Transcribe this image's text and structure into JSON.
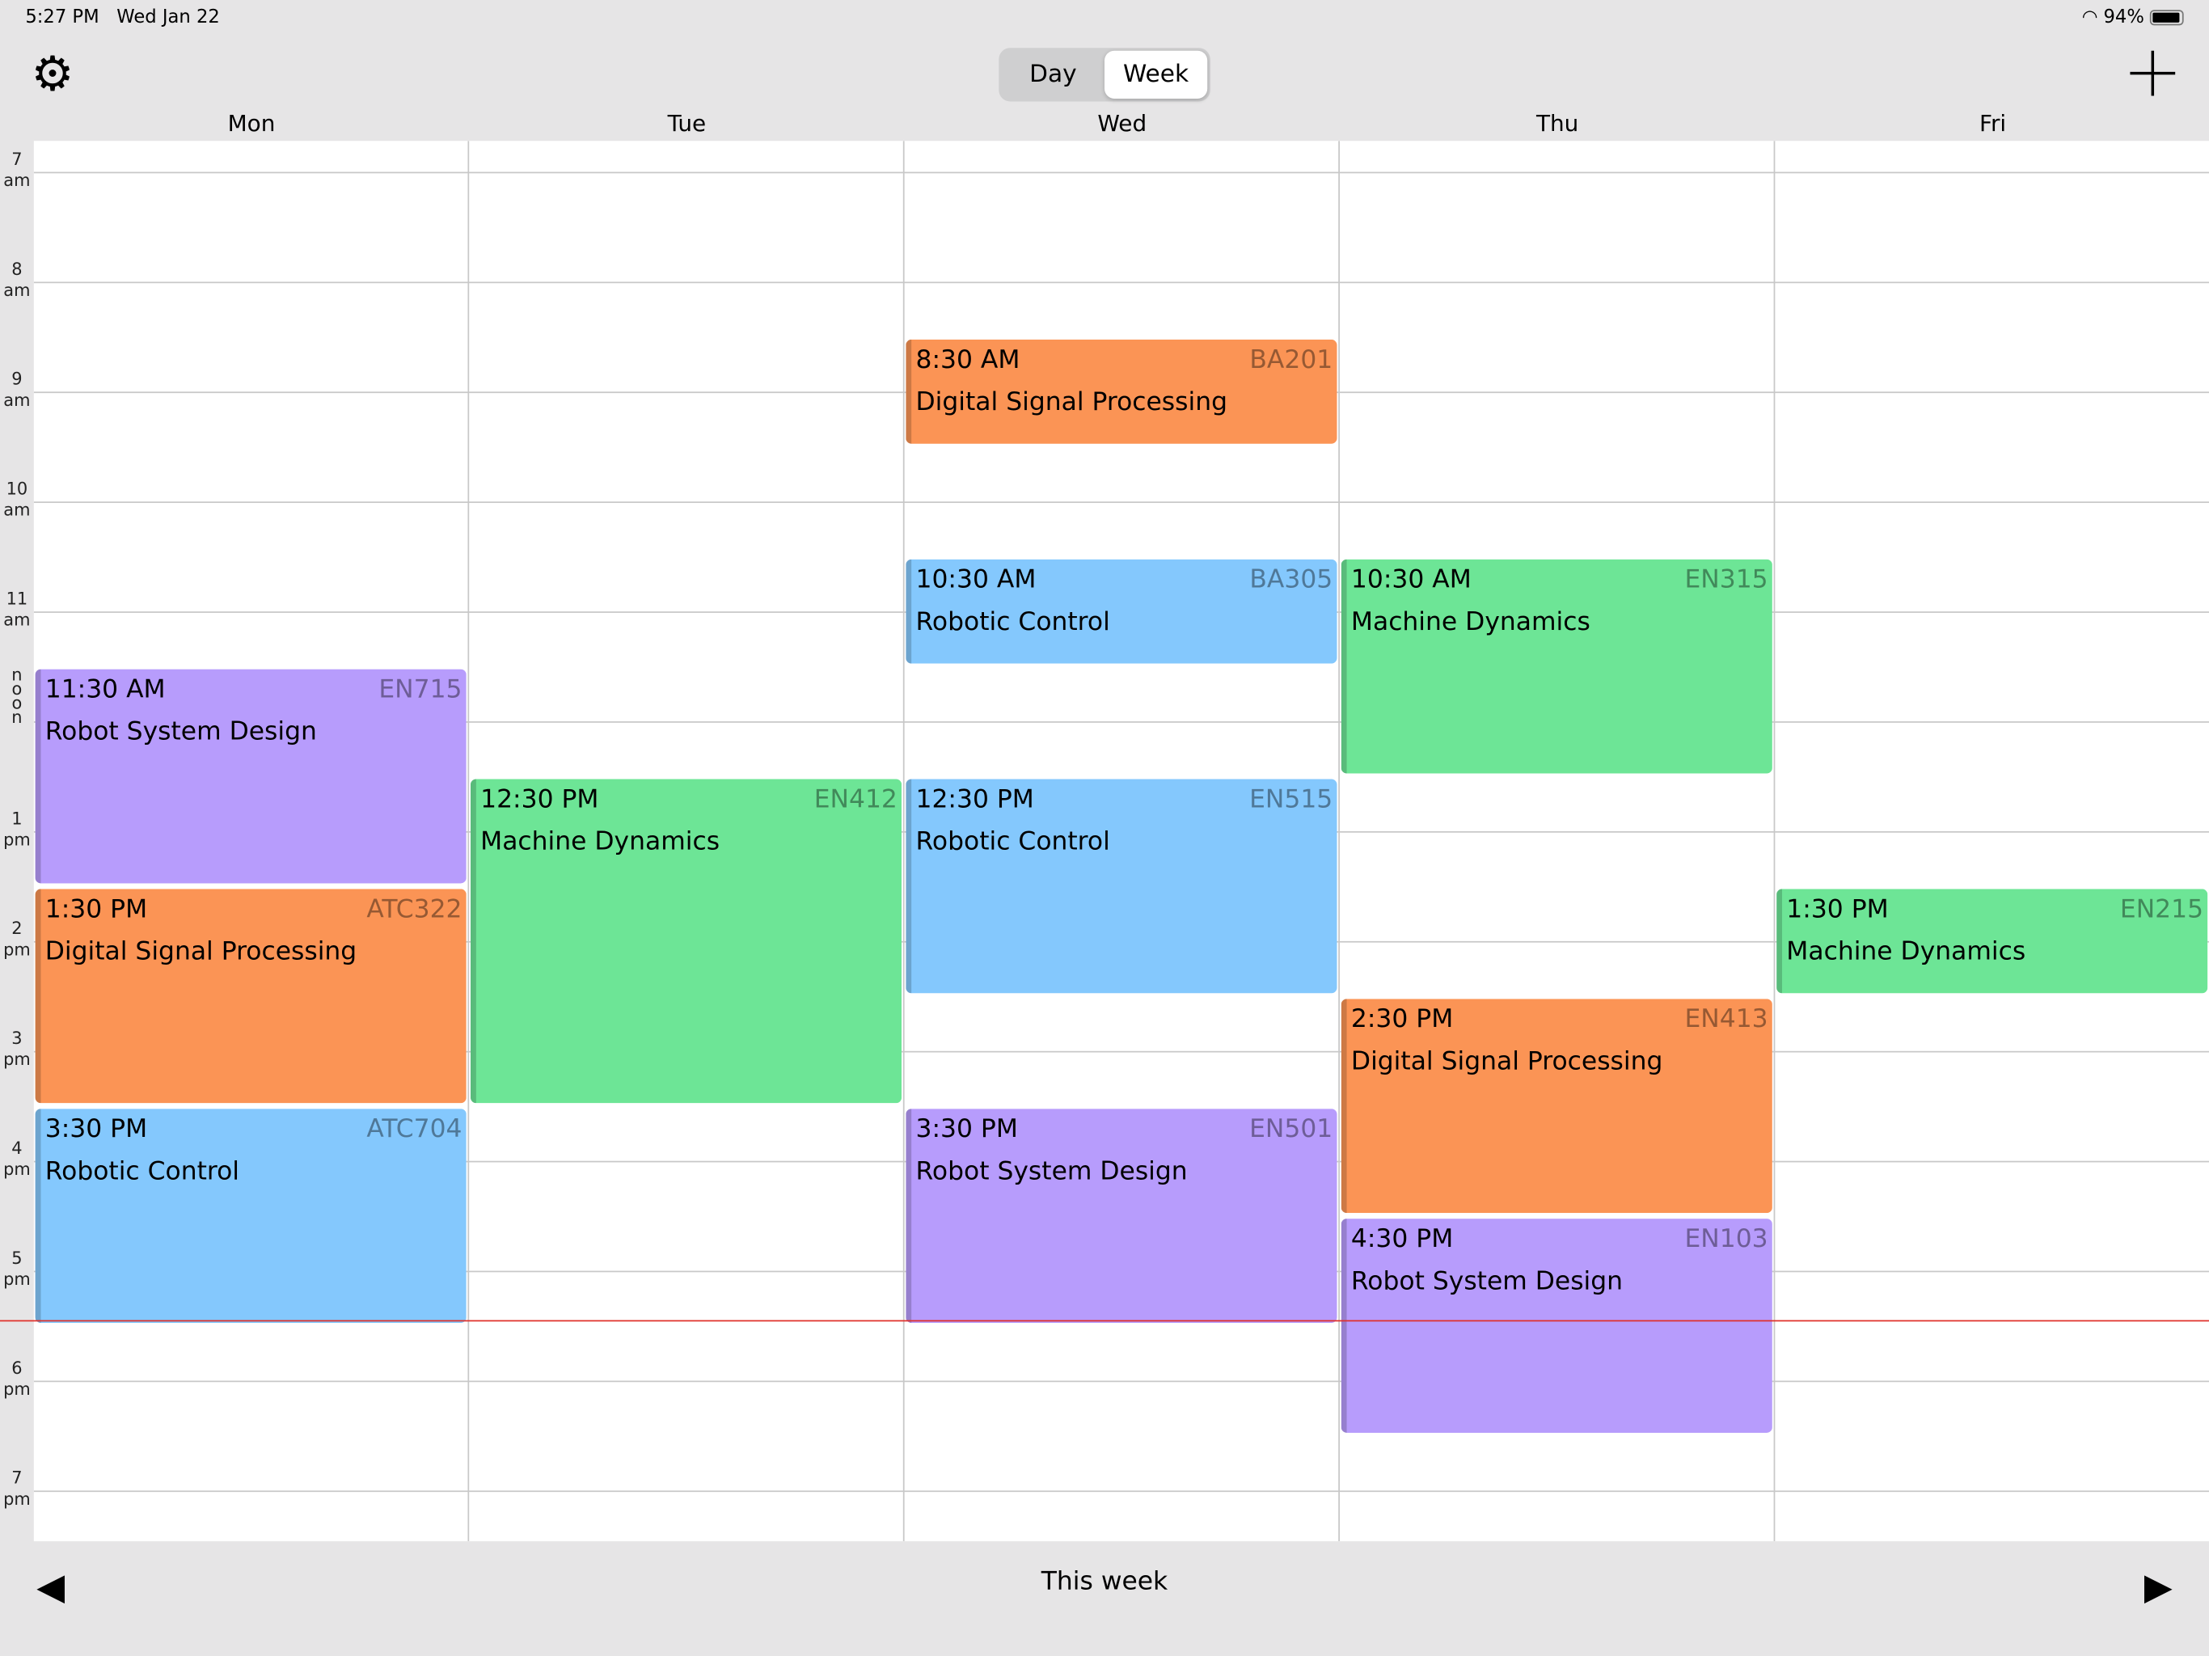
{
  "status_bar": {
    "time": "5:27 PM",
    "date": "Wed Jan 22",
    "battery": "94%",
    "battery_level": 0.94
  },
  "toolbar": {
    "segments": [
      "Day",
      "Week"
    ],
    "selected": "Week"
  },
  "days": [
    "Mon",
    "Tue",
    "Wed",
    "Thu",
    "Fri"
  ],
  "hours": [
    [
      "7",
      "am"
    ],
    [
      "8",
      "am"
    ],
    [
      "9",
      "am"
    ],
    [
      "10",
      "am"
    ],
    [
      "11",
      "am"
    ],
    [
      "n o o n",
      ""
    ],
    [
      "1",
      "pm"
    ],
    [
      "2",
      "pm"
    ],
    [
      "3",
      "pm"
    ],
    [
      "4",
      "pm"
    ],
    [
      "5",
      "pm"
    ],
    [
      "6",
      "pm"
    ],
    [
      "7",
      "pm"
    ]
  ],
  "current_time": "5:27 PM",
  "colors": {
    "purple": "#b79cfc",
    "orange": "#fb9455",
    "green": "#6de596",
    "blue": "#84c8fd",
    "now_line": "#e0302a"
  },
  "events": [
    {
      "day": "Mon",
      "start": 11.5,
      "end": 13.5,
      "time": "11:30 AM",
      "room": "EN715",
      "title": "Robot System Design",
      "color": "#b79cfc"
    },
    {
      "day": "Mon",
      "start": 13.5,
      "end": 15.5,
      "time": "1:30 PM",
      "room": "ATC322",
      "title": "Digital Signal Processing",
      "color": "#fb9455"
    },
    {
      "day": "Mon",
      "start": 15.5,
      "end": 17.5,
      "time": "3:30 PM",
      "room": "ATC704",
      "title": "Robotic Control",
      "color": "#84c8fd"
    },
    {
      "day": "Tue",
      "start": 12.5,
      "end": 15.5,
      "time": "12:30 PM",
      "room": "EN412",
      "title": "Machine Dynamics",
      "color": "#6de596"
    },
    {
      "day": "Wed",
      "start": 8.5,
      "end": 9.5,
      "time": "8:30 AM",
      "room": "BA201",
      "title": "Digital Signal Processing",
      "color": "#fb9455"
    },
    {
      "day": "Wed",
      "start": 10.5,
      "end": 11.5,
      "time": "10:30 AM",
      "room": "BA305",
      "title": "Robotic Control",
      "color": "#84c8fd"
    },
    {
      "day": "Wed",
      "start": 12.5,
      "end": 14.5,
      "time": "12:30 PM",
      "room": "EN515",
      "title": "Robotic Control",
      "color": "#84c8fd"
    },
    {
      "day": "Wed",
      "start": 15.5,
      "end": 17.5,
      "time": "3:30 PM",
      "room": "EN501",
      "title": "Robot System Design",
      "color": "#b79cfc"
    },
    {
      "day": "Thu",
      "start": 10.5,
      "end": 12.5,
      "time": "10:30 AM",
      "room": "EN315",
      "title": "Machine Dynamics",
      "color": "#6de596"
    },
    {
      "day": "Thu",
      "start": 14.5,
      "end": 16.5,
      "time": "2:30 PM",
      "room": "EN413",
      "title": "Digital Signal Processing",
      "color": "#fb9455"
    },
    {
      "day": "Thu",
      "start": 16.5,
      "end": 18.5,
      "time": "4:30 PM",
      "room": "EN103",
      "title": "Robot System Design",
      "color": "#b79cfc"
    },
    {
      "day": "Fri",
      "start": 13.5,
      "end": 14.5,
      "time": "1:30 PM",
      "room": "EN215",
      "title": "Machine Dynamics",
      "color": "#6de596"
    }
  ],
  "footer": {
    "label": "This week",
    "prev_icon": "triangle-left",
    "next_icon": "triangle-right"
  }
}
